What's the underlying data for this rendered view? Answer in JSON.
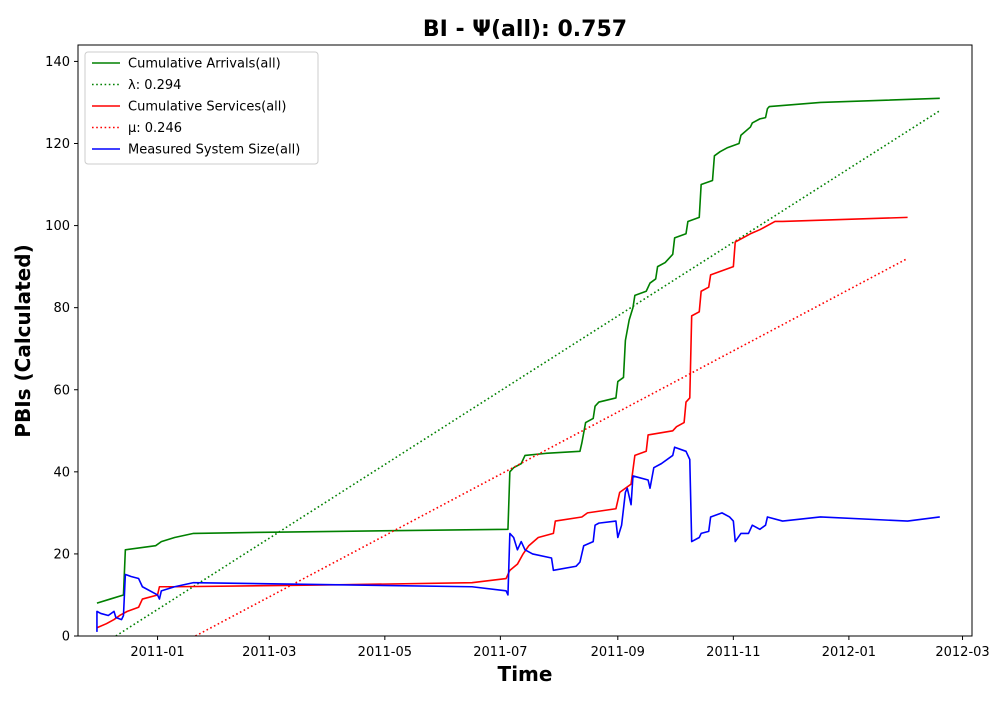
{
  "chart_data": {
    "type": "line",
    "title": "BI -  Ψ(all): 0.757",
    "xlabel": "Time",
    "ylabel": "PBIs (Calculated)",
    "xlim": [
      "2010-11-20",
      "2012-03-06"
    ],
    "ylim": [
      0,
      144
    ],
    "x_ticks": [
      "2011-01",
      "2011-03",
      "2011-05",
      "2011-07",
      "2011-09",
      "2011-11",
      "2012-01",
      "2012-03"
    ],
    "y_ticks": [
      0,
      20,
      40,
      60,
      80,
      100,
      120,
      140
    ],
    "grid": false,
    "legend_position": "upper-left",
    "series": [
      {
        "name": "Cumulative Arrivals(all)",
        "color": "#008000",
        "style": "solid",
        "points": [
          [
            "2010-11-30",
            8
          ],
          [
            "2010-12-07",
            9
          ],
          [
            "2010-12-14",
            10
          ],
          [
            "2010-12-15",
            21
          ],
          [
            "2010-12-31",
            22
          ],
          [
            "2011-01-03",
            23
          ],
          [
            "2011-01-10",
            24
          ],
          [
            "2011-01-20",
            25
          ],
          [
            "2011-03-04",
            25.3
          ],
          [
            "2011-07-05",
            26
          ],
          [
            "2011-07-06",
            40
          ],
          [
            "2011-07-08",
            41
          ],
          [
            "2011-07-12",
            42
          ],
          [
            "2011-07-14",
            44
          ],
          [
            "2011-07-25",
            44.5
          ],
          [
            "2011-08-12",
            45
          ],
          [
            "2011-08-13",
            47
          ],
          [
            "2011-08-15",
            52
          ],
          [
            "2011-08-19",
            53
          ],
          [
            "2011-08-20",
            56
          ],
          [
            "2011-08-22",
            57
          ],
          [
            "2011-08-31",
            58
          ],
          [
            "2011-09-01",
            62
          ],
          [
            "2011-09-04",
            63
          ],
          [
            "2011-09-05",
            72
          ],
          [
            "2011-09-07",
            77
          ],
          [
            "2011-09-09",
            80
          ],
          [
            "2011-09-10",
            83
          ],
          [
            "2011-09-16",
            84
          ],
          [
            "2011-09-18",
            86
          ],
          [
            "2011-09-21",
            87
          ],
          [
            "2011-09-22",
            90
          ],
          [
            "2011-09-26",
            91
          ],
          [
            "2011-09-30",
            93
          ],
          [
            "2011-10-01",
            97
          ],
          [
            "2011-10-07",
            98
          ],
          [
            "2011-10-08",
            101
          ],
          [
            "2011-10-14",
            102
          ],
          [
            "2011-10-15",
            110
          ],
          [
            "2011-10-21",
            111
          ],
          [
            "2011-10-22",
            117
          ],
          [
            "2011-10-25",
            118
          ],
          [
            "2011-10-29",
            119
          ],
          [
            "2011-11-04",
            120
          ],
          [
            "2011-11-05",
            122
          ],
          [
            "2011-11-10",
            124
          ],
          [
            "2011-11-11",
            125
          ],
          [
            "2011-11-15",
            126
          ],
          [
            "2011-11-18",
            126.3
          ],
          [
            "2011-11-19",
            128.5
          ],
          [
            "2011-11-20",
            129
          ],
          [
            "2011-12-17",
            130
          ],
          [
            "2012-02-18",
            131
          ]
        ]
      },
      {
        "name": "λ: 0.294",
        "color": "#008000",
        "style": "dotted",
        "points": [
          [
            "2010-12-10",
            0
          ],
          [
            "2012-02-18",
            128
          ]
        ]
      },
      {
        "name": "Cumulative Services(all)",
        "color": "#ff0000",
        "style": "solid",
        "points": [
          [
            "2010-11-30",
            2
          ],
          [
            "2010-12-05",
            3
          ],
          [
            "2010-12-09",
            4
          ],
          [
            "2010-12-12",
            5
          ],
          [
            "2010-12-16",
            6
          ],
          [
            "2010-12-22",
            7
          ],
          [
            "2010-12-24",
            9
          ],
          [
            "2011-01-01",
            10
          ],
          [
            "2011-01-02",
            12
          ],
          [
            "2011-01-10",
            12
          ],
          [
            "2011-04-10",
            12.5
          ],
          [
            "2011-06-16",
            13
          ],
          [
            "2011-07-04",
            14
          ],
          [
            "2011-07-06",
            16
          ],
          [
            "2011-07-10",
            17.5
          ],
          [
            "2011-07-13",
            20
          ],
          [
            "2011-07-16",
            22
          ],
          [
            "2011-07-21",
            24
          ],
          [
            "2011-07-29",
            25
          ],
          [
            "2011-07-30",
            28
          ],
          [
            "2011-08-13",
            29
          ],
          [
            "2011-08-16",
            30
          ],
          [
            "2011-08-31",
            31
          ],
          [
            "2011-09-02",
            35
          ],
          [
            "2011-09-05",
            36
          ],
          [
            "2011-09-08",
            37
          ],
          [
            "2011-09-10",
            44
          ],
          [
            "2011-09-16",
            45
          ],
          [
            "2011-09-17",
            49
          ],
          [
            "2011-09-30",
            50
          ],
          [
            "2011-10-02",
            51
          ],
          [
            "2011-10-06",
            52
          ],
          [
            "2011-10-07",
            57
          ],
          [
            "2011-10-09",
            58
          ],
          [
            "2011-10-10",
            78
          ],
          [
            "2011-10-14",
            79
          ],
          [
            "2011-10-15",
            84
          ],
          [
            "2011-10-19",
            85
          ],
          [
            "2011-10-20",
            88
          ],
          [
            "2011-11-01",
            90
          ],
          [
            "2011-11-02",
            96
          ],
          [
            "2011-11-06",
            97
          ],
          [
            "2011-11-10",
            98
          ],
          [
            "2011-11-15",
            99
          ],
          [
            "2011-11-23",
            101
          ],
          [
            "2011-11-27",
            101
          ],
          [
            "2012-02-01",
            102
          ]
        ]
      },
      {
        "name": "μ: 0.246",
        "color": "#ff0000",
        "style": "dotted",
        "points": [
          [
            "2011-01-21",
            0
          ],
          [
            "2012-02-01",
            92
          ]
        ]
      },
      {
        "name": "Measured System Size(all)",
        "color": "#0000ff",
        "style": "solid",
        "points": [
          [
            "2010-11-30",
            1
          ],
          [
            "2010-11-30",
            6
          ],
          [
            "2010-12-02",
            5.5
          ],
          [
            "2010-12-06",
            5
          ],
          [
            "2010-12-09",
            6
          ],
          [
            "2010-12-10",
            4.5
          ],
          [
            "2010-12-13",
            4
          ],
          [
            "2010-12-14",
            5
          ],
          [
            "2010-12-15",
            15
          ],
          [
            "2010-12-18",
            14.5
          ],
          [
            "2010-12-22",
            14
          ],
          [
            "2010-12-24",
            12
          ],
          [
            "2011-01-01",
            10
          ],
          [
            "2011-01-02",
            9
          ],
          [
            "2011-01-03",
            11
          ],
          [
            "2011-01-10",
            12
          ],
          [
            "2011-01-20",
            13
          ],
          [
            "2011-06-16",
            12
          ],
          [
            "2011-07-04",
            11
          ],
          [
            "2011-07-05",
            10
          ],
          [
            "2011-07-06",
            25
          ],
          [
            "2011-07-08",
            24
          ],
          [
            "2011-07-10",
            21
          ],
          [
            "2011-07-12",
            23
          ],
          [
            "2011-07-14",
            21
          ],
          [
            "2011-07-18",
            20
          ],
          [
            "2011-07-28",
            19
          ],
          [
            "2011-07-29",
            16
          ],
          [
            "2011-08-10",
            17
          ],
          [
            "2011-08-12",
            18
          ],
          [
            "2011-08-14",
            22
          ],
          [
            "2011-08-19",
            23
          ],
          [
            "2011-08-20",
            27
          ],
          [
            "2011-08-22",
            27.5
          ],
          [
            "2011-08-31",
            28
          ],
          [
            "2011-09-01",
            24
          ],
          [
            "2011-09-03",
            27
          ],
          [
            "2011-09-05",
            35
          ],
          [
            "2011-09-06",
            36
          ],
          [
            "2011-09-08",
            32
          ],
          [
            "2011-09-09",
            39
          ],
          [
            "2011-09-17",
            38
          ],
          [
            "2011-09-18",
            36
          ],
          [
            "2011-09-20",
            41
          ],
          [
            "2011-09-24",
            42
          ],
          [
            "2011-09-30",
            44
          ],
          [
            "2011-10-01",
            46
          ],
          [
            "2011-10-07",
            45
          ],
          [
            "2011-10-09",
            43
          ],
          [
            "2011-10-10",
            23
          ],
          [
            "2011-10-14",
            24
          ],
          [
            "2011-10-15",
            25
          ],
          [
            "2011-10-19",
            25.5
          ],
          [
            "2011-10-20",
            29
          ],
          [
            "2011-10-26",
            30
          ],
          [
            "2011-10-30",
            29
          ],
          [
            "2011-11-01",
            28
          ],
          [
            "2011-11-02",
            23
          ],
          [
            "2011-11-05",
            25
          ],
          [
            "2011-11-09",
            25
          ],
          [
            "2011-11-11",
            27
          ],
          [
            "2011-11-15",
            26
          ],
          [
            "2011-11-18",
            27
          ],
          [
            "2011-11-19",
            29
          ],
          [
            "2011-11-27",
            28
          ],
          [
            "2011-12-17",
            29
          ],
          [
            "2012-02-01",
            28
          ],
          [
            "2012-02-18",
            29
          ]
        ]
      }
    ]
  }
}
